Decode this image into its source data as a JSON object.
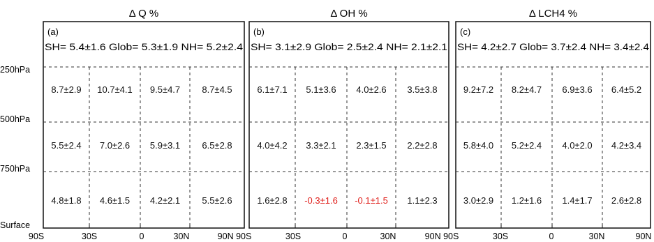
{
  "y_levels": [
    "250hPa",
    "500hPa",
    "750hPa",
    "Surface"
  ],
  "x_ticks": [
    "90S",
    "30S",
    "0",
    "30N",
    "90N"
  ],
  "x_ticks_last_panel_left": "90N 90S",
  "colors": {
    "normal": "#111111",
    "highlight": "#e0201c",
    "dashed": "#333333"
  },
  "chart_data": [
    {
      "type": "table",
      "title": "Δ Q %",
      "panel_label": "(a)",
      "summary": "SH= 5.4±1.6 Glob= 5.3±1.9 NH= 5.2±2.4",
      "rows": [
        "250hPa–500hPa",
        "500hPa–750hPa",
        "750hPa–Surface"
      ],
      "columns": [
        "90S–30S",
        "30S–0",
        "0–30N",
        "30N–90N"
      ],
      "cells": [
        [
          "8.7±2.9",
          "10.7±4.1",
          "9.5±4.7",
          "8.7±4.5"
        ],
        [
          "5.5±2.4",
          "7.0±2.6",
          "5.9±3.1",
          "6.5±2.8"
        ],
        [
          "4.8±1.8",
          "4.6±1.5",
          "4.2±2.1",
          "5.5±2.6"
        ]
      ],
      "highlight": []
    },
    {
      "type": "table",
      "title": "Δ OH %",
      "panel_label": "(b)",
      "summary": "SH= 3.1±2.9 Glob= 2.5±2.4 NH= 2.1±2.1",
      "rows": [
        "250hPa–500hPa",
        "500hPa–750hPa",
        "750hPa–Surface"
      ],
      "columns": [
        "90S–30S",
        "30S–0",
        "0–30N",
        "30N–90N"
      ],
      "cells": [
        [
          "6.1±7.1",
          "5.1±3.6",
          "4.0±2.6",
          "3.5±3.8"
        ],
        [
          "4.0±4.2",
          "3.3±2.1",
          "2.3±1.5",
          "2.2±2.8"
        ],
        [
          "1.6±2.8",
          "-0.3±1.6",
          "-0.1±1.5",
          "1.1±2.3"
        ]
      ],
      "highlight": [
        [
          2,
          1
        ],
        [
          2,
          2
        ]
      ]
    },
    {
      "type": "table",
      "title": "Δ LCH4 %",
      "panel_label": "(c)",
      "summary": "SH= 4.2±2.7 Glob= 3.7±2.4 NH= 3.4±2.4",
      "rows": [
        "250hPa–500hPa",
        "500hPa–750hPa",
        "750hPa–Surface"
      ],
      "columns": [
        "90S–30S",
        "30S–0",
        "0–30N",
        "30N–90N"
      ],
      "cells": [
        [
          "9.2±7.2",
          "8.2±4.7",
          "6.9±3.6",
          "6.4±5.2"
        ],
        [
          "5.8±4.0",
          "5.2±2.4",
          "4.0±2.0",
          "4.2±3.4"
        ],
        [
          "3.0±2.9",
          "1.2±1.6",
          "1.4±1.7",
          "2.6±2.8"
        ]
      ],
      "highlight": []
    }
  ]
}
